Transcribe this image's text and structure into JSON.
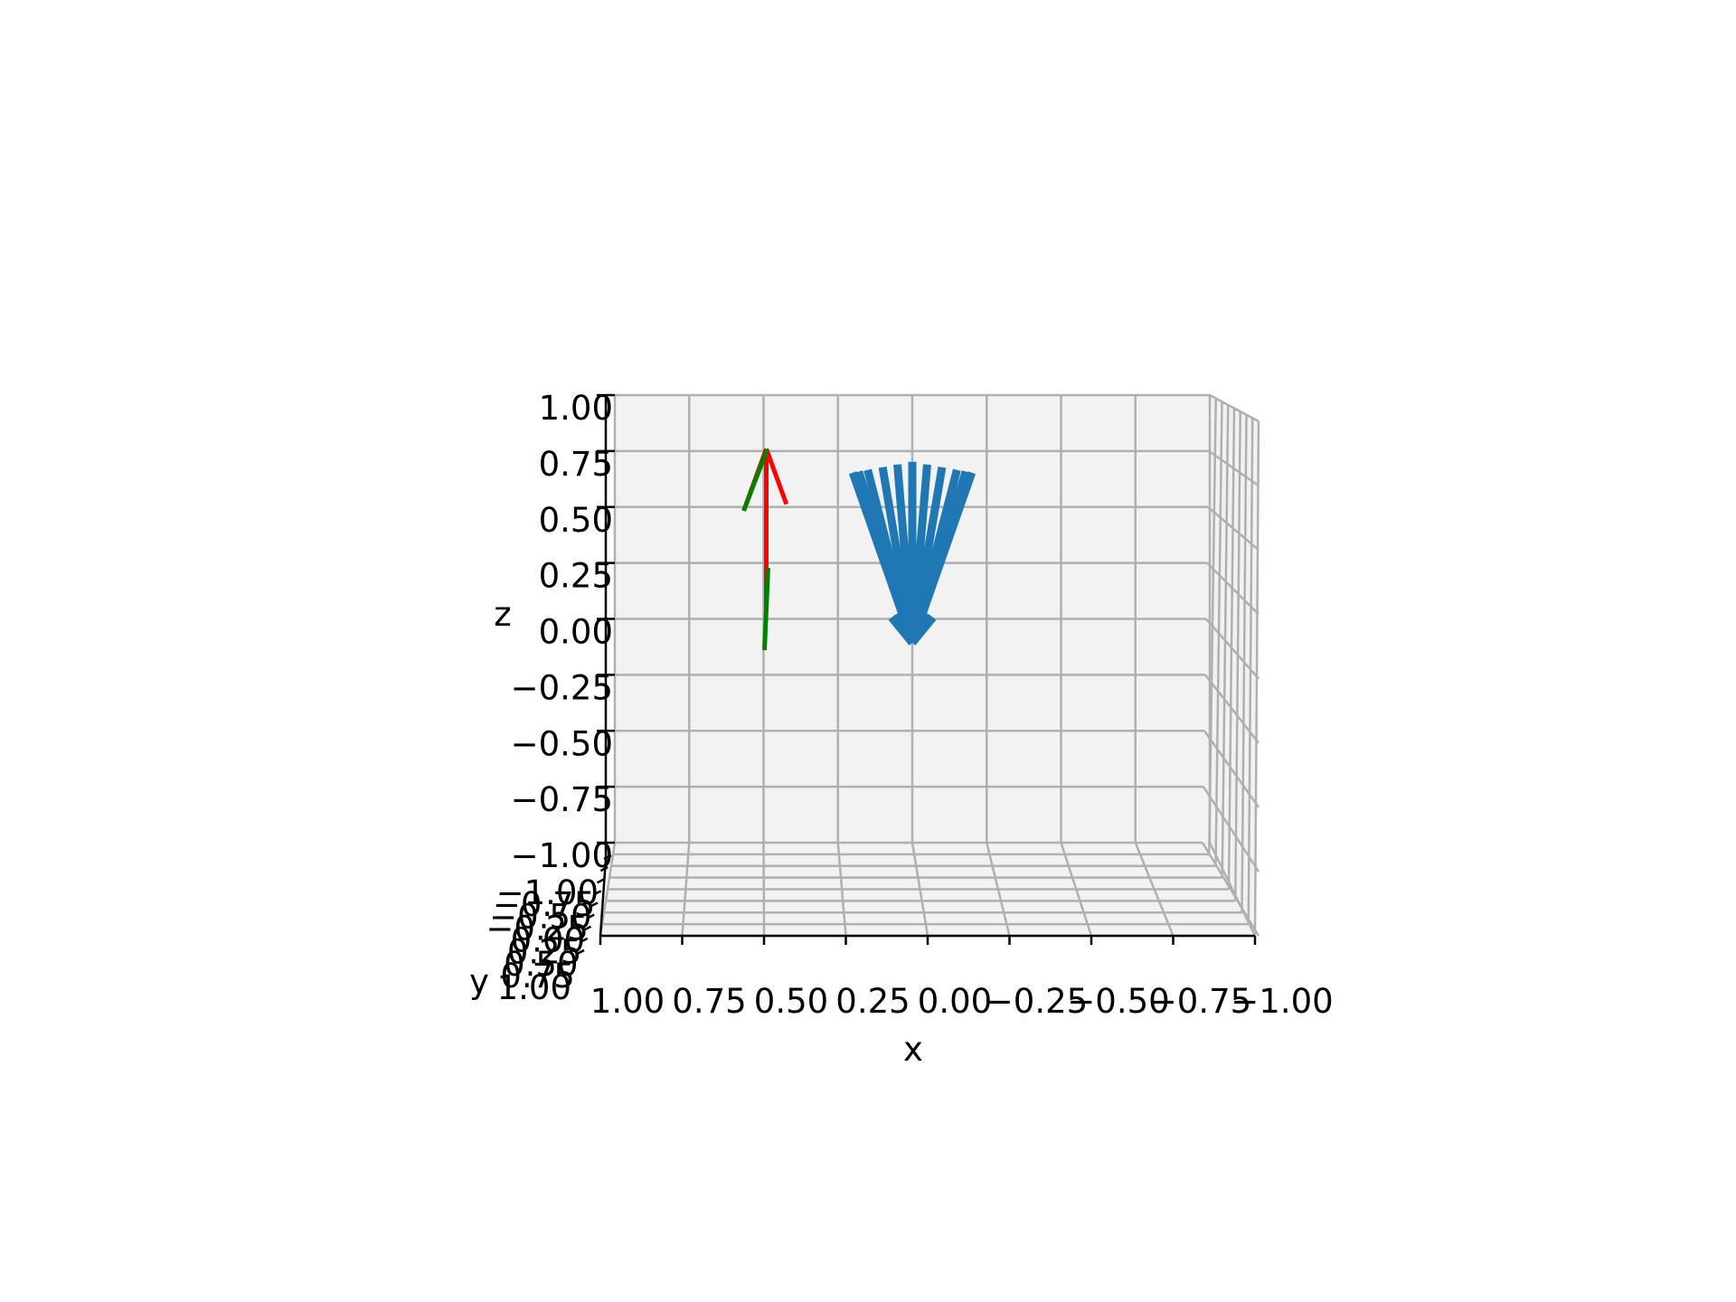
{
  "chart_data": {
    "type": "3d-quiver",
    "xlabel": "x",
    "ylabel": "y",
    "zlabel": "z",
    "xlim": [
      -1.0,
      1.0
    ],
    "ylim": [
      -1.0,
      1.0
    ],
    "zlim": [
      -1.0,
      1.0
    ],
    "x_ticks": [
      "1.00",
      "0.75",
      "0.50",
      "0.25",
      "0.00",
      "−0.25",
      "−0.50",
      "−0.75",
      "−1.00"
    ],
    "z_ticks": [
      "1.00",
      "0.75",
      "0.50",
      "0.25",
      "0.00",
      "−0.25",
      "−0.50",
      "−0.75",
      "−1.00"
    ],
    "y_ticks": [
      "−1.00",
      "−0.75",
      "−0.50",
      "−0.25",
      "0.00",
      "0.25",
      "0.50",
      "0.75",
      "1.00"
    ],
    "grid": true,
    "view": {
      "elev": 5,
      "azim": 90
    },
    "colors": {
      "pane": "#f2f2f2",
      "grid": "#b0b0b0",
      "fan": "#1f77b4",
      "red": "#ff0000",
      "green": "#008000"
    },
    "series": [
      {
        "color": "#1f77b4",
        "kind": "fan of arrows converging at origin",
        "tail_z": 0.5,
        "tail_x": [
          0.2,
          0.18,
          0.15,
          0.1,
          0.05,
          0.0,
          -0.05,
          -0.1,
          -0.15,
          -0.18,
          -0.2
        ],
        "tip": [
          0.0,
          0.0,
          -0.05
        ]
      },
      {
        "color": "#ff0000",
        "kind": "arrow",
        "from": [
          0.5,
          0.0,
          0.1
        ],
        "to": [
          0.5,
          0.0,
          0.8
        ]
      },
      {
        "color": "#008000",
        "kind": "arrow",
        "from": [
          0.5,
          0.0,
          -0.2
        ],
        "to": [
          0.5,
          0.0,
          0.8
        ]
      }
    ]
  }
}
